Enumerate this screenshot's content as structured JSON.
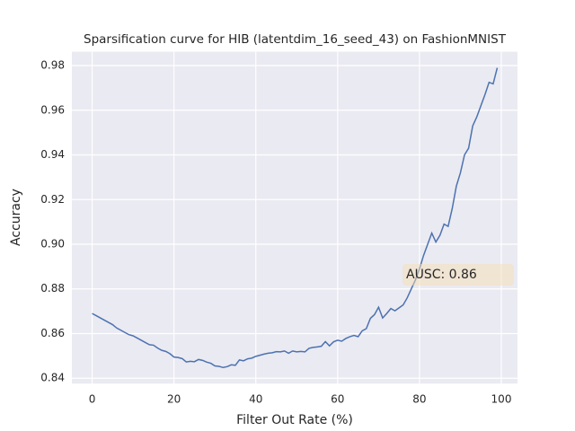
{
  "chart_data": {
    "type": "line",
    "title": "Sparsification curve for HIB (latentdim_16_seed_43) on FashionMNIST",
    "xlabel": "Filter Out Rate (%)",
    "ylabel": "Accuracy",
    "annotation": "AUSC: 0.86",
    "color": "#4c72b0",
    "grid": true,
    "xlim": [
      -4.95,
      103.95
    ],
    "ylim": [
      0.8376,
      0.9862
    ],
    "xticks": [
      0,
      20,
      40,
      60,
      80,
      100
    ],
    "yticks": [
      0.84,
      0.86,
      0.88,
      0.9,
      0.92,
      0.94,
      0.96,
      0.98
    ],
    "ytick_labels": [
      "0.84",
      "0.86",
      "0.88",
      "0.90",
      "0.92",
      "0.94",
      "0.96",
      "0.98"
    ],
    "x": [
      0,
      1,
      2,
      3,
      4,
      5,
      6,
      7,
      8,
      9,
      10,
      11,
      12,
      13,
      14,
      15,
      16,
      17,
      18,
      19,
      20,
      21,
      22,
      23,
      24,
      25,
      26,
      27,
      28,
      29,
      30,
      31,
      32,
      33,
      34,
      35,
      36,
      37,
      38,
      39,
      40,
      41,
      42,
      43,
      44,
      45,
      46,
      47,
      48,
      49,
      50,
      51,
      52,
      53,
      54,
      55,
      56,
      57,
      58,
      59,
      60,
      61,
      62,
      63,
      64,
      65,
      66,
      67,
      68,
      69,
      70,
      71,
      72,
      73,
      74,
      75,
      76,
      77,
      78,
      79,
      80,
      81,
      82,
      83,
      84,
      85,
      86,
      87,
      88,
      89,
      90,
      91,
      92,
      93,
      94,
      95,
      96,
      97,
      98,
      99
    ],
    "values": [
      0.869,
      0.868,
      0.867,
      0.866,
      0.865,
      0.864,
      0.8625,
      0.8615,
      0.8605,
      0.8595,
      0.859,
      0.858,
      0.857,
      0.856,
      0.855,
      0.8548,
      0.8535,
      0.8525,
      0.852,
      0.851,
      0.8495,
      0.8493,
      0.8488,
      0.8473,
      0.8476,
      0.8474,
      0.8484,
      0.848,
      0.8472,
      0.8467,
      0.8455,
      0.8453,
      0.8448,
      0.8452,
      0.846,
      0.8458,
      0.8482,
      0.8478,
      0.8487,
      0.849,
      0.8498,
      0.8503,
      0.8508,
      0.8512,
      0.8514,
      0.8519,
      0.8518,
      0.8522,
      0.8512,
      0.8522,
      0.8518,
      0.852,
      0.8518,
      0.8534,
      0.8538,
      0.854,
      0.8543,
      0.8564,
      0.8545,
      0.8563,
      0.857,
      0.8566,
      0.8578,
      0.8586,
      0.8592,
      0.8586,
      0.8612,
      0.8622,
      0.8668,
      0.8685,
      0.8718,
      0.867,
      0.869,
      0.8712,
      0.8702,
      0.8715,
      0.8728,
      0.876,
      0.88,
      0.884,
      0.889,
      0.895,
      0.9,
      0.905,
      0.901,
      0.904,
      0.909,
      0.908,
      0.916,
      0.926,
      0.932,
      0.94,
      0.943,
      0.953,
      0.957,
      0.962,
      0.967,
      0.9725,
      0.9718,
      0.979
    ]
  }
}
